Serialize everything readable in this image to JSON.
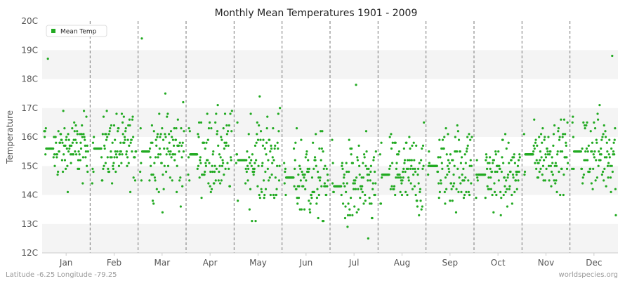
{
  "chart_data": {
    "type": "scatter",
    "title": "Monthly Mean Temperatures 1901 - 2009",
    "xlabel": "",
    "ylabel": "Temperature",
    "categories": [
      "Jan",
      "Feb",
      "Mar",
      "Apr",
      "May",
      "Jun",
      "Jul",
      "Aug",
      "Sep",
      "Oct",
      "Nov",
      "Dec"
    ],
    "y_ticks": [
      "12C",
      "13C",
      "14C",
      "15C",
      "16C",
      "17C",
      "18C",
      "19C",
      "20C"
    ],
    "ylim": [
      12,
      20
    ],
    "grid": "alternating horizontal bands, dashed vertical month separators",
    "legend": {
      "placement": "top-left",
      "entries": [
        "Mean Temp"
      ]
    },
    "series": [
      {
        "name": "Mean Temp",
        "color": "#22aa22",
        "mean_by_month": [
          15.6,
          15.6,
          15.5,
          15.4,
          15.2,
          14.6,
          14.3,
          14.7,
          15.0,
          14.7,
          15.4,
          15.5
        ],
        "spread_by_month": [
          0.55,
          0.6,
          0.8,
          0.7,
          0.85,
          0.75,
          0.75,
          0.7,
          0.7,
          0.6,
          0.55,
          0.7
        ],
        "outliers": [
          {
            "month": 0,
            "year": 1910,
            "value": 18.7
          },
          {
            "month": 2,
            "year": 1905,
            "value": 19.4
          },
          {
            "month": 6,
            "year": 1960,
            "value": 17.8
          },
          {
            "month": 6,
            "year": 1990,
            "value": 12.5
          },
          {
            "month": 11,
            "year": 2000,
            "value": 18.8
          },
          {
            "month": 11,
            "year": 2009,
            "value": 13.3
          }
        ],
        "years": [
          1901,
          2009
        ]
      }
    ]
  },
  "footer": {
    "left": "Latitude -6.25 Longitude -79.25",
    "right": "worldspecies.org"
  },
  "colors": {
    "band_light": "#ffffff",
    "band_dark": "#f4f4f4",
    "separator": "#777777",
    "axis": "#cccccc"
  }
}
